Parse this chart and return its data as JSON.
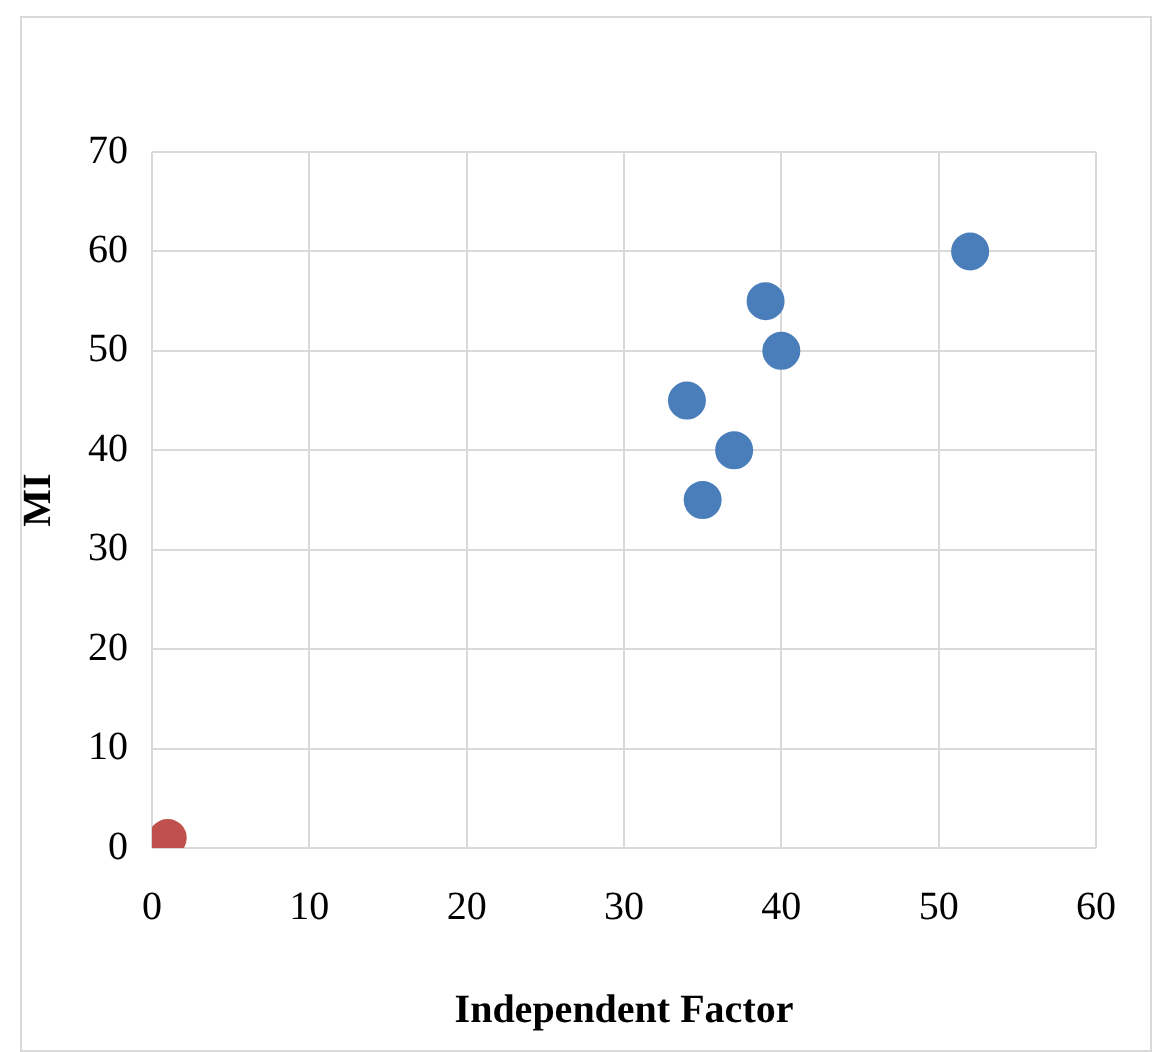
{
  "chart_data": {
    "type": "scatter",
    "xlabel": "Independent Factor",
    "ylabel": "MI",
    "series": [
      {
        "color": "#4a7ebb",
        "x": [
          52,
          39,
          40,
          34,
          37,
          35
        ],
        "values": [
          60,
          55,
          50,
          45,
          40,
          35
        ]
      },
      {
        "color": "#c0504d",
        "x": [
          1
        ],
        "values": [
          1
        ]
      }
    ],
    "xlim": [
      0,
      60
    ],
    "xticks": [
      0,
      10,
      20,
      30,
      40,
      50,
      60
    ],
    "ylim": [
      0,
      70
    ],
    "yticks": [
      0,
      10,
      20,
      30,
      40,
      50,
      60,
      70
    ],
    "grid": true,
    "legend": false,
    "marker": "circle"
  }
}
